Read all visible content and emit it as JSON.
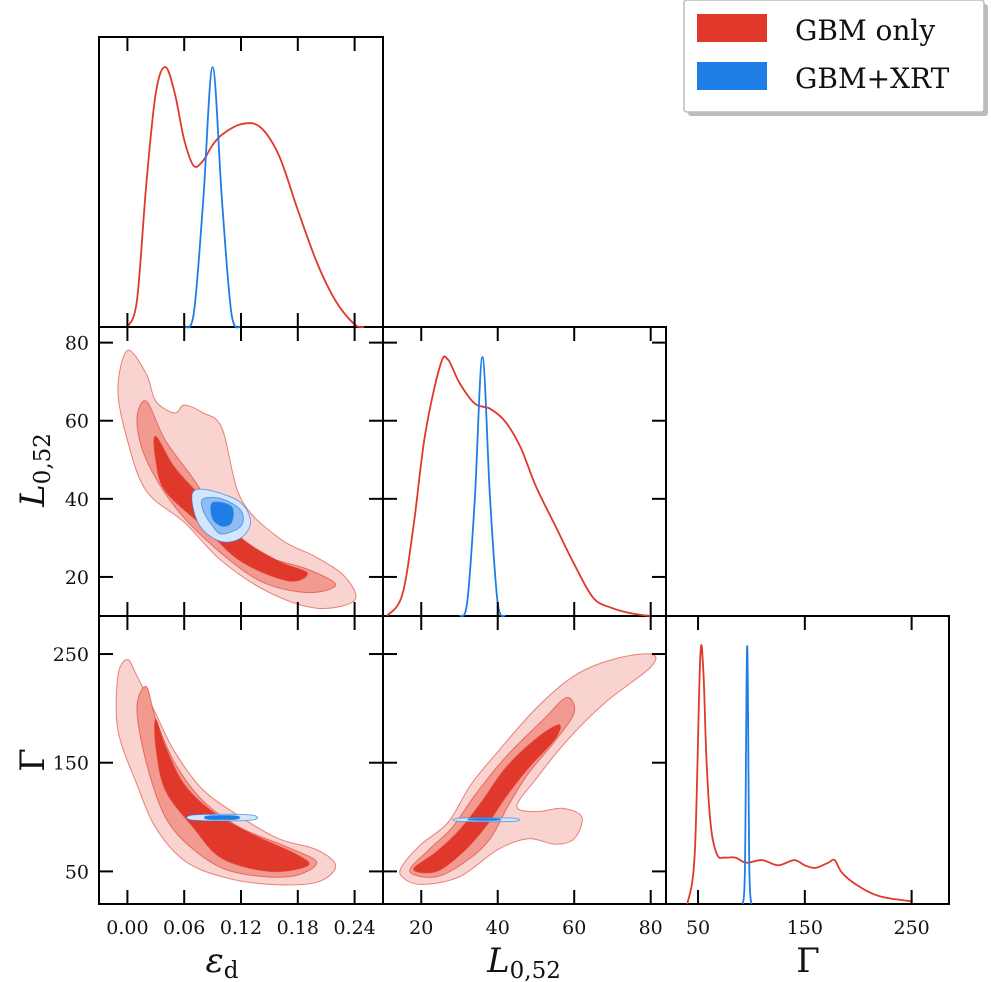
{
  "chart_data": {
    "type": "corner",
    "parameters": [
      {
        "label": "ε",
        "sub": "d",
        "ticks": [
          "0.00",
          "0.06",
          "0.12",
          "0.18",
          "0.24"
        ],
        "tick_values": [
          0.0,
          0.06,
          0.12,
          0.18,
          0.24
        ],
        "range": [
          -0.03,
          0.27
        ]
      },
      {
        "label": "L",
        "sub": "0,52",
        "ticks": [
          "20",
          "40",
          "60",
          "80"
        ],
        "tick_values": [
          20,
          40,
          60,
          80
        ],
        "range": [
          10,
          84
        ]
      },
      {
        "label": "Γ",
        "sub": "",
        "ticks": [
          "50",
          "150",
          "250"
        ],
        "tick_values": [
          50,
          150,
          250
        ],
        "range": [
          20,
          285
        ]
      }
    ],
    "legend": {
      "placement": "top-right",
      "entries": [
        {
          "name": "GBM only",
          "color": "#e0382b"
        },
        {
          "name": "GBM+XRT",
          "color": "#1f7de6"
        }
      ]
    },
    "marginals": {
      "eps": {
        "gbm": [
          [
            0.0,
            0.0
          ],
          [
            0.01,
            0.1
          ],
          [
            0.02,
            0.55
          ],
          [
            0.03,
            0.9
          ],
          [
            0.04,
            1.0
          ],
          [
            0.05,
            0.9
          ],
          [
            0.06,
            0.72
          ],
          [
            0.07,
            0.62
          ],
          [
            0.08,
            0.64
          ],
          [
            0.09,
            0.7
          ],
          [
            0.1,
            0.74
          ],
          [
            0.12,
            0.78
          ],
          [
            0.14,
            0.77
          ],
          [
            0.16,
            0.66
          ],
          [
            0.18,
            0.45
          ],
          [
            0.2,
            0.25
          ],
          [
            0.22,
            0.1
          ],
          [
            0.24,
            0.01
          ],
          [
            0.25,
            0.0
          ]
        ],
        "xrt": [
          [
            0.06,
            0.0
          ],
          [
            0.07,
            0.05
          ],
          [
            0.08,
            0.48
          ],
          [
            0.09,
            1.0
          ],
          [
            0.1,
            0.48
          ],
          [
            0.11,
            0.05
          ],
          [
            0.12,
            0.0
          ]
        ]
      },
      "L": {
        "gbm": [
          [
            11,
            0.0
          ],
          [
            15,
            0.08
          ],
          [
            18,
            0.35
          ],
          [
            21,
            0.7
          ],
          [
            25,
            0.97
          ],
          [
            27,
            0.99
          ],
          [
            30,
            0.9
          ],
          [
            34,
            0.82
          ],
          [
            38,
            0.8
          ],
          [
            42,
            0.75
          ],
          [
            46,
            0.65
          ],
          [
            50,
            0.5
          ],
          [
            55,
            0.35
          ],
          [
            60,
            0.2
          ],
          [
            65,
            0.07
          ],
          [
            70,
            0.03
          ],
          [
            75,
            0.01
          ],
          [
            80,
            0.0
          ]
        ],
        "xrt": [
          [
            30,
            0.0
          ],
          [
            32,
            0.05
          ],
          [
            34,
            0.45
          ],
          [
            36,
            1.0
          ],
          [
            38,
            0.45
          ],
          [
            40,
            0.05
          ],
          [
            42,
            0.0
          ]
        ]
      },
      "Gamma": {
        "gbm": [
          [
            40,
            0.0
          ],
          [
            47,
            0.2
          ],
          [
            52,
            0.95
          ],
          [
            55,
            0.9
          ],
          [
            58,
            0.55
          ],
          [
            62,
            0.3
          ],
          [
            68,
            0.19
          ],
          [
            75,
            0.18
          ],
          [
            85,
            0.18
          ],
          [
            95,
            0.16
          ],
          [
            110,
            0.17
          ],
          [
            125,
            0.15
          ],
          [
            140,
            0.17
          ],
          [
            150,
            0.15
          ],
          [
            160,
            0.14
          ],
          [
            172,
            0.16
          ],
          [
            178,
            0.17
          ],
          [
            185,
            0.12
          ],
          [
            200,
            0.07
          ],
          [
            220,
            0.03
          ],
          [
            250,
            0.01
          ]
        ],
        "xrt": [
          [
            92,
            0.0
          ],
          [
            94,
            0.15
          ],
          [
            96,
            1.0
          ],
          [
            98,
            0.15
          ],
          [
            100,
            0.0
          ]
        ]
      }
    },
    "contours": {
      "eps_L": {
        "gbm_outer": [
          [
            0.0,
            78
          ],
          [
            0.02,
            72
          ],
          [
            0.03,
            65
          ],
          [
            0.05,
            62
          ],
          [
            0.06,
            64
          ],
          [
            0.08,
            62
          ],
          [
            0.1,
            58
          ],
          [
            0.12,
            40
          ],
          [
            0.16,
            30
          ],
          [
            0.2,
            25
          ],
          [
            0.23,
            20
          ],
          [
            0.24,
            14
          ],
          [
            0.2,
            12
          ],
          [
            0.15,
            16
          ],
          [
            0.1,
            24
          ],
          [
            0.06,
            34
          ],
          [
            0.02,
            42
          ],
          [
            0.0,
            55
          ],
          [
            -0.01,
            68
          ]
        ],
        "gbm_mid": [
          [
            0.02,
            65
          ],
          [
            0.04,
            55
          ],
          [
            0.07,
            45
          ],
          [
            0.1,
            34
          ],
          [
            0.14,
            26
          ],
          [
            0.19,
            22
          ],
          [
            0.22,
            18
          ],
          [
            0.19,
            16
          ],
          [
            0.14,
            19
          ],
          [
            0.09,
            28
          ],
          [
            0.05,
            38
          ],
          [
            0.02,
            50
          ],
          [
            0.01,
            60
          ]
        ],
        "gbm_inner": [
          [
            0.03,
            56
          ],
          [
            0.05,
            48
          ],
          [
            0.08,
            40
          ],
          [
            0.12,
            30
          ],
          [
            0.16,
            24
          ],
          [
            0.19,
            21
          ],
          [
            0.17,
            19
          ],
          [
            0.12,
            24
          ],
          [
            0.08,
            33
          ],
          [
            0.04,
            42
          ],
          [
            0.03,
            50
          ]
        ],
        "xrt_outer": [
          [
            0.07,
            42
          ],
          [
            0.09,
            42
          ],
          [
            0.12,
            39
          ],
          [
            0.13,
            34
          ],
          [
            0.12,
            30
          ],
          [
            0.1,
            29
          ],
          [
            0.08,
            32
          ],
          [
            0.07,
            37
          ]
        ],
        "xrt_mid": [
          [
            0.08,
            40
          ],
          [
            0.1,
            40
          ],
          [
            0.12,
            37
          ],
          [
            0.12,
            33
          ],
          [
            0.1,
            31
          ],
          [
            0.09,
            33
          ],
          [
            0.08,
            37
          ]
        ],
        "xrt_inner": [
          [
            0.09,
            39
          ],
          [
            0.11,
            38
          ],
          [
            0.11,
            34
          ],
          [
            0.1,
            33
          ],
          [
            0.09,
            35
          ]
        ]
      },
      "eps_Gamma": {
        "gbm_outer": [
          [
            0.0,
            245
          ],
          [
            0.01,
            230
          ],
          [
            0.03,
            195
          ],
          [
            0.05,
            160
          ],
          [
            0.08,
            125
          ],
          [
            0.12,
            100
          ],
          [
            0.16,
            80
          ],
          [
            0.2,
            70
          ],
          [
            0.22,
            55
          ],
          [
            0.2,
            40
          ],
          [
            0.15,
            38
          ],
          [
            0.1,
            45
          ],
          [
            0.06,
            60
          ],
          [
            0.03,
            90
          ],
          [
            0.01,
            130
          ],
          [
            -0.01,
            180
          ],
          [
            -0.01,
            230
          ]
        ],
        "gbm_mid": [
          [
            0.02,
            220
          ],
          [
            0.03,
            190
          ],
          [
            0.05,
            150
          ],
          [
            0.08,
            115
          ],
          [
            0.12,
            90
          ],
          [
            0.17,
            72
          ],
          [
            0.2,
            58
          ],
          [
            0.17,
            45
          ],
          [
            0.11,
            50
          ],
          [
            0.07,
            70
          ],
          [
            0.04,
            100
          ],
          [
            0.02,
            150
          ],
          [
            0.01,
            200
          ]
        ],
        "gbm_inner": [
          [
            0.03,
            190
          ],
          [
            0.04,
            165
          ],
          [
            0.06,
            130
          ],
          [
            0.09,
            105
          ],
          [
            0.13,
            85
          ],
          [
            0.18,
            65
          ],
          [
            0.19,
            55
          ],
          [
            0.15,
            50
          ],
          [
            0.1,
            62
          ],
          [
            0.07,
            90
          ],
          [
            0.04,
            125
          ],
          [
            0.03,
            165
          ]
        ],
        "xrt_outer": [
          [
            0.07,
            102
          ],
          [
            0.13,
            102
          ],
          [
            0.13,
            97
          ],
          [
            0.07,
            97
          ]
        ],
        "xrt_inner": [
          [
            0.085,
            101
          ],
          [
            0.115,
            101
          ],
          [
            0.115,
            98
          ],
          [
            0.085,
            98
          ]
        ]
      },
      "L_Gamma": {
        "gbm_outer": [
          [
            15,
            45
          ],
          [
            15,
            55
          ],
          [
            20,
            75
          ],
          [
            27,
            95
          ],
          [
            33,
            130
          ],
          [
            40,
            160
          ],
          [
            50,
            200
          ],
          [
            60,
            230
          ],
          [
            70,
            245
          ],
          [
            80,
            250
          ],
          [
            80,
            238
          ],
          [
            68,
            205
          ],
          [
            58,
            170
          ],
          [
            50,
            135
          ],
          [
            45,
            110
          ],
          [
            50,
            105
          ],
          [
            57,
            108
          ],
          [
            62,
            100
          ],
          [
            60,
            80
          ],
          [
            55,
            75
          ],
          [
            48,
            80
          ],
          [
            40,
            70
          ],
          [
            30,
            45
          ],
          [
            20,
            38
          ]
        ],
        "gbm_mid": [
          [
            17,
            50
          ],
          [
            22,
            70
          ],
          [
            28,
            90
          ],
          [
            34,
            120
          ],
          [
            42,
            155
          ],
          [
            52,
            190
          ],
          [
            58,
            210
          ],
          [
            60,
            196
          ],
          [
            55,
            170
          ],
          [
            48,
            140
          ],
          [
            43,
            112
          ],
          [
            38,
            80
          ],
          [
            32,
            60
          ],
          [
            24,
            45
          ]
        ],
        "gbm_inner": [
          [
            18,
            52
          ],
          [
            24,
            68
          ],
          [
            30,
            88
          ],
          [
            36,
            115
          ],
          [
            42,
            145
          ],
          [
            50,
            172
          ],
          [
            56,
            185
          ],
          [
            55,
            172
          ],
          [
            48,
            145
          ],
          [
            42,
            118
          ],
          [
            37,
            92
          ],
          [
            31,
            68
          ],
          [
            24,
            50
          ]
        ],
        "xrt_outer": [
          [
            30,
            99
          ],
          [
            44,
            99
          ],
          [
            44,
            96
          ],
          [
            30,
            96
          ]
        ],
        "xrt_inner": [
          [
            33,
            98.5
          ],
          [
            40,
            98.5
          ],
          [
            40,
            97
          ],
          [
            33,
            97
          ]
        ]
      }
    }
  }
}
